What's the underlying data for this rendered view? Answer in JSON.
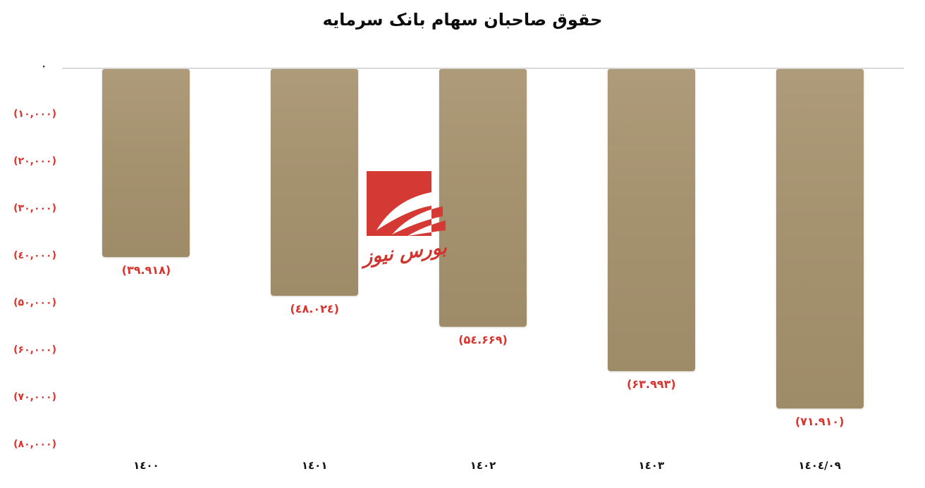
{
  "title": "حقوق صاحبان سهام بانک سرمایه",
  "watermark": {
    "name": "bourse-news",
    "text": "بورس نیوز"
  },
  "colors": {
    "bar_gradient_top": "#ae9b79",
    "bar_gradient_bottom": "#9e8b68",
    "negative_red": "#d9342e",
    "logo_red": "#d43a33",
    "axis_line_gray": "#d9d9d9",
    "text_black": "#141414"
  },
  "chart_data": {
    "type": "bar",
    "title": "حقوق صاحبان سهام بانک سرمایه",
    "xlabel": "",
    "ylabel": "",
    "grid": false,
    "legend": false,
    "ylim": [
      -80000,
      0
    ],
    "categories": [
      "1400",
      "1401",
      "1402",
      "1403",
      "1404/09"
    ],
    "categories_fa": [
      "۱٤۰۰",
      "۱٤۰۱",
      "۱٤۰۲",
      "۱٤۰۳",
      "۱٤۰٤/۰۹"
    ],
    "values": [
      -39918,
      -48024,
      -54669,
      -63993,
      -71910
    ],
    "value_labels_fa": [
      "(۳۹.۹۱۸)",
      "(٤۸.۰۲٤)",
      "(۵٤.۶۶۹)",
      "(۶۳.۹۹۳)",
      "(۷۱.۹۱۰)"
    ],
    "yticks": [
      {
        "value": 0,
        "label": "٠"
      },
      {
        "value": -10000,
        "label": "(۱۰,۰۰۰)"
      },
      {
        "value": -20000,
        "label": "(۲۰,۰۰۰)"
      },
      {
        "value": -30000,
        "label": "(۳۰,۰۰۰)"
      },
      {
        "value": -40000,
        "label": "(٤۰,۰۰۰)"
      },
      {
        "value": -50000,
        "label": "(۵۰,۰۰۰)"
      },
      {
        "value": -60000,
        "label": "(۶۰,۰۰۰)"
      },
      {
        "value": -70000,
        "label": "(۷۰,۰۰۰)"
      },
      {
        "value": -80000,
        "label": "(۸۰,۰۰۰)"
      }
    ]
  }
}
